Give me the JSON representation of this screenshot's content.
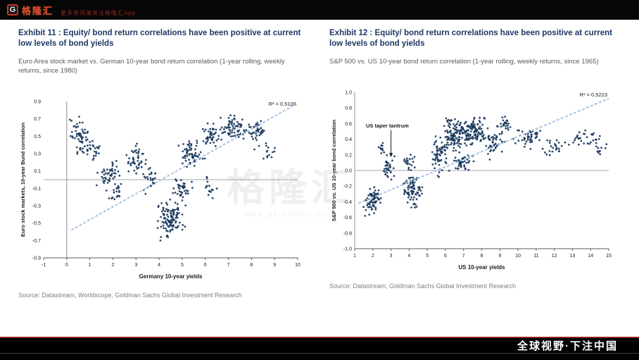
{
  "header": {
    "logo_letter": "G",
    "brand": "格隆汇",
    "tagline": "更多资讯请关注格隆汇App"
  },
  "footer": {
    "slogan": "全球视野·下注中国"
  },
  "watermark": {
    "text": "格隆汇",
    "subtext": "www.gelonghui.com"
  },
  "colors": {
    "title_navy": "#1f3864",
    "point_navy": "#16365c",
    "trend_blue": "#a6c5e6",
    "accent_red": "#c8372c"
  },
  "panels": [
    {
      "exhibit_title": "Exhibit 11 : Equity/ bond return correlations have been positive at current low levels of bond yields",
      "subtitle": "Euro Area stock market vs. German 10-year bond return correlation (1-year rolling, weekly returns, since 1980)",
      "source": "Source: Datastream, Worldscope, Goldman Sachs Global Investment Research"
    },
    {
      "exhibit_title": "Exhibit 12 : Equity/ bond return correlations have been positive at current low levels of bond yields",
      "subtitle": "S&P 500 vs. US 10-year bond return correlation (1-year rolling, weekly returns, since 1965)",
      "source": "Source: Datastream, Goldman Sachs Global Investment Research"
    }
  ],
  "chart_data": [
    {
      "type": "scatter",
      "title": "Euro Area stock market vs. German 10-year bond return correlation (1-year rolling, weekly returns, since 1980)",
      "xlabel": "Germany 10-year yields",
      "ylabel": "Euro stock markets, 10-year Bund correlation",
      "xlim": [
        -1,
        10
      ],
      "ylim": [
        -0.9,
        0.9
      ],
      "xticks": [
        -1,
        0,
        1,
        2,
        3,
        4,
        5,
        6,
        7,
        8,
        9,
        10
      ],
      "yticks": [
        0.9,
        0.7,
        0.5,
        0.3,
        0.1,
        -0.1,
        -0.3,
        -0.5,
        -0.7,
        -0.9
      ],
      "y_axis_x": 0,
      "grid": "zero-line-only",
      "legend": "none",
      "r_squared": 0.5106,
      "r_squared_label": "R² = 0.5106",
      "trendline": {
        "x1": 0.2,
        "y1": -0.58,
        "x2": 9.8,
        "y2": 0.85
      },
      "point_color": "#16365c",
      "trend_color": "#a6c5e6",
      "clusters_note": "each cluster = [center_x, center_y, spread_x, spread_y, n_points] approximating the dense weekly-observation cloud",
      "clusters": [
        [
          0.55,
          0.52,
          0.35,
          0.18,
          55
        ],
        [
          1.15,
          0.33,
          0.3,
          0.12,
          25
        ],
        [
          1.8,
          0.05,
          0.45,
          0.15,
          45
        ],
        [
          2.1,
          -0.15,
          0.3,
          0.1,
          20
        ],
        [
          3.0,
          0.22,
          0.35,
          0.15,
          45
        ],
        [
          3.6,
          0.0,
          0.3,
          0.15,
          25
        ],
        [
          4.5,
          -0.45,
          0.5,
          0.2,
          110
        ],
        [
          5.0,
          -0.15,
          0.4,
          0.15,
          40
        ],
        [
          5.4,
          0.3,
          0.5,
          0.15,
          60
        ],
        [
          6.2,
          -0.1,
          0.3,
          0.12,
          15
        ],
        [
          6.3,
          0.5,
          0.4,
          0.12,
          45
        ],
        [
          7.2,
          0.6,
          0.5,
          0.13,
          60
        ],
        [
          8.2,
          0.55,
          0.5,
          0.15,
          45
        ],
        [
          8.8,
          0.3,
          0.3,
          0.1,
          12
        ]
      ]
    },
    {
      "type": "scatter",
      "title": "S&P 500 vs. US 10-year bond return correlation (1-year rolling, weekly returns, since 1965)",
      "xlabel": "US 10-year yields",
      "ylabel": "S&P 500 vs. US 10-year bond correlation",
      "xlim": [
        1,
        15
      ],
      "ylim": [
        -1.0,
        1.0
      ],
      "xticks": [
        1,
        2,
        3,
        4,
        5,
        6,
        7,
        8,
        9,
        10,
        11,
        12,
        13,
        14,
        15
      ],
      "yticks": [
        1.0,
        0.8,
        0.6,
        0.4,
        0.2,
        0.0,
        -0.2,
        -0.4,
        -0.6,
        -0.8,
        -1.0
      ],
      "y_axis_x": 1,
      "grid": "zero-line-only",
      "legend": "none",
      "r_squared": 0.5223,
      "r_squared_label": "R² = 0.5223",
      "trendline": {
        "x1": 1.2,
        "y1": -0.42,
        "x2": 15,
        "y2": 0.92
      },
      "point_color": "#16365c",
      "trend_color": "#a6c5e6",
      "annotation": {
        "text": "US taper tantrum",
        "text_x": 2.8,
        "text_y": 0.55,
        "arrow_x": 3.0,
        "arrow_y": 0.17
      },
      "clusters_note": "each cluster = [center_x, center_y, spread_x, spread_y, n_points] approximating the dense weekly-observation cloud",
      "clusters": [
        [
          2.0,
          -0.38,
          0.4,
          0.15,
          70
        ],
        [
          2.9,
          0.05,
          0.3,
          0.15,
          35
        ],
        [
          2.5,
          0.3,
          0.2,
          0.1,
          10
        ],
        [
          4.2,
          -0.25,
          0.5,
          0.18,
          80
        ],
        [
          4.0,
          0.1,
          0.3,
          0.1,
          20
        ],
        [
          5.6,
          0.2,
          0.5,
          0.2,
          60
        ],
        [
          6.5,
          0.45,
          0.6,
          0.18,
          110
        ],
        [
          7.5,
          0.5,
          0.7,
          0.15,
          110
        ],
        [
          7.0,
          0.1,
          0.6,
          0.12,
          45
        ],
        [
          8.7,
          0.35,
          0.5,
          0.15,
          45
        ],
        [
          9.3,
          0.6,
          0.4,
          0.1,
          25
        ],
        [
          10.5,
          0.42,
          0.7,
          0.12,
          45
        ],
        [
          12.0,
          0.3,
          0.6,
          0.1,
          25
        ],
        [
          13.8,
          0.42,
          0.7,
          0.08,
          30
        ],
        [
          14.5,
          0.28,
          0.4,
          0.06,
          10
        ]
      ]
    }
  ]
}
